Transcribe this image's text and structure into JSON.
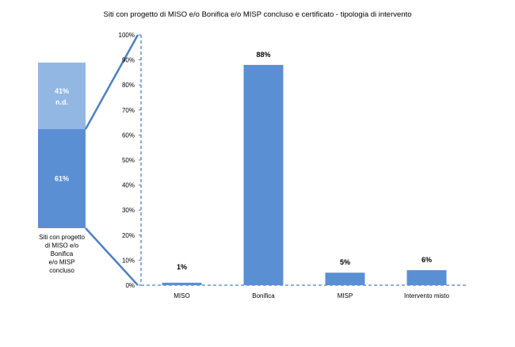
{
  "chart_data": [
    {
      "type": "bar",
      "stacked": true,
      "category_label_lines": [
        "Siti con progetto",
        "di MISO e/o",
        "Bonifica",
        "e/o MISP",
        "concluso"
      ],
      "segments": [
        {
          "value": 61,
          "label": "61%",
          "color": "#5B8FD4"
        },
        {
          "value": 41,
          "label": "41%",
          "sublabel": "n.d.",
          "color": "#93B7E3"
        }
      ]
    },
    {
      "type": "bar",
      "title": "Siti  con progetto di MISO e/o Bonifica e/o MISP concluso e certificato - tipologia di intervento",
      "categories": [
        "MISO",
        "Bonifica",
        "MISP",
        "Intervento misto"
      ],
      "values": [
        1,
        88,
        5,
        6
      ],
      "value_labels": [
        "1%",
        "88%",
        "5%",
        "6%"
      ],
      "ylim": [
        0,
        100
      ],
      "yticks": [
        0,
        10,
        20,
        30,
        40,
        50,
        60,
        70,
        80,
        90,
        100
      ],
      "ytick_labels": [
        "0%",
        "10%",
        "20%",
        "30%",
        "40%",
        "50%",
        "60%",
        "70%",
        "80%",
        "90%",
        "100%"
      ],
      "bar_color": "#5B8FD4",
      "axis_color": "#4F81BD",
      "grid": false
    }
  ]
}
